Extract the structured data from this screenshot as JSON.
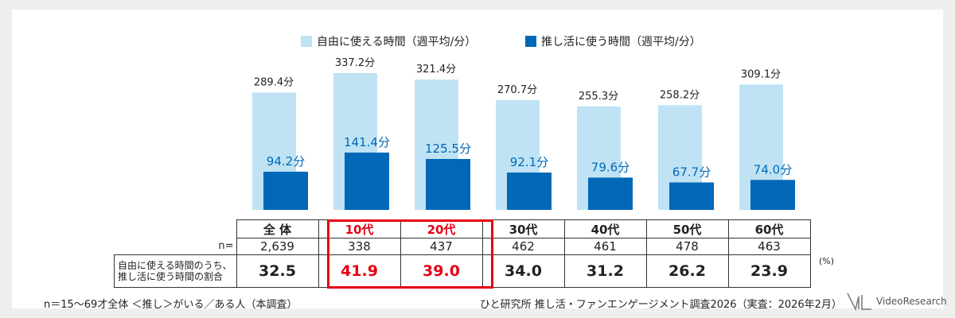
{
  "legend": {
    "free_time": "自由に使える時間（週平均/分）",
    "oshi_time": "推し活に使う時間（週平均/分）"
  },
  "colors": {
    "free_time": "#bfe3f4",
    "oshi_time": "#0068b7",
    "highlight": "#e60012"
  },
  "chart_data": {
    "type": "bar",
    "categories": [
      "全 体",
      "10代",
      "20代",
      "30代",
      "40代",
      "50代",
      "60代"
    ],
    "series": [
      {
        "name": "自由に使える時間（週平均/分）",
        "values": [
          289.4,
          337.2,
          321.4,
          270.7,
          255.3,
          258.2,
          309.1
        ],
        "labels": [
          "289.4分",
          "337.2分",
          "321.4分",
          "270.7分",
          "255.3分",
          "258.2分",
          "309.1分"
        ]
      },
      {
        "name": "推し活に使う時間（週平均/分）",
        "values": [
          94.2,
          141.4,
          125.5,
          92.1,
          79.6,
          67.7,
          74.0
        ],
        "labels": [
          "94.2分",
          "141.4分",
          "125.5分",
          "92.1分",
          "79.6分",
          "67.7分",
          "74.0分"
        ]
      }
    ]
  },
  "table": {
    "columns": [
      "全 体",
      "10代",
      "20代",
      "30代",
      "40代",
      "50代",
      "60代"
    ],
    "n_label": "n=",
    "n_values": [
      "2,639",
      "338",
      "437",
      "462",
      "461",
      "478",
      "463"
    ],
    "ratio_label_line1": "自由に使える時間のうち、",
    "ratio_label_line2": "推し活に使う時間の割合",
    "ratio_values": [
      "32.5",
      "41.9",
      "39.0",
      "34.0",
      "31.2",
      "26.2",
      "23.9"
    ],
    "highlighted_columns": [
      "10代",
      "20代"
    ],
    "unit": "(%)"
  },
  "footnotes": {
    "left": "n＝15～69才全体 ＜推し＞がいる／ある人（本調査）",
    "right": "ひと研究所 推し活・ファンエンゲージメント調査2026（実査：2026年2月）"
  },
  "logo": {
    "text": "VideoResearch"
  }
}
